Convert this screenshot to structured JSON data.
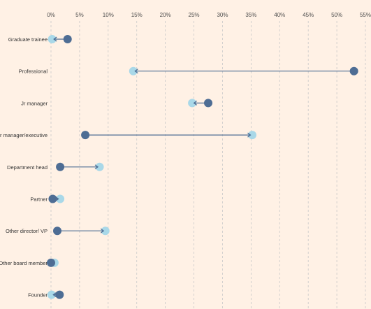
{
  "colors": {
    "background": "#fff1e5",
    "start_marker": "#4e6d94",
    "end_marker": "#a9d8e8",
    "connector": "#4e6d94",
    "grid": "#c8c8c8"
  },
  "chart_data": {
    "type": "dumbbell",
    "title": "",
    "xlabel": "",
    "ylabel": "",
    "xlim": [
      0,
      55
    ],
    "x_ticks": [
      0,
      5,
      10,
      15,
      20,
      25,
      30,
      35,
      40,
      45,
      50,
      55
    ],
    "x_tick_labels": [
      "0%",
      "5%",
      "10%",
      "15%",
      "20%",
      "25%",
      "30%",
      "35%",
      "40%",
      "45%",
      "50%",
      "55%"
    ],
    "grid": true,
    "categories": [
      "Graduate trainee",
      "Professional",
      "Jr manager",
      "Sr manager/executive",
      "Department head",
      "Partner",
      "Other director/ VP",
      "Other board member",
      "Founder"
    ],
    "series": [
      {
        "values": [
          2.9,
          53.0,
          27.5,
          6.0,
          1.6,
          0.3,
          1.1,
          0.0,
          1.5
        ]
      },
      {
        "values": [
          0.2,
          14.4,
          24.7,
          35.2,
          8.5,
          1.6,
          9.5,
          0.6,
          0.1
        ]
      }
    ]
  }
}
